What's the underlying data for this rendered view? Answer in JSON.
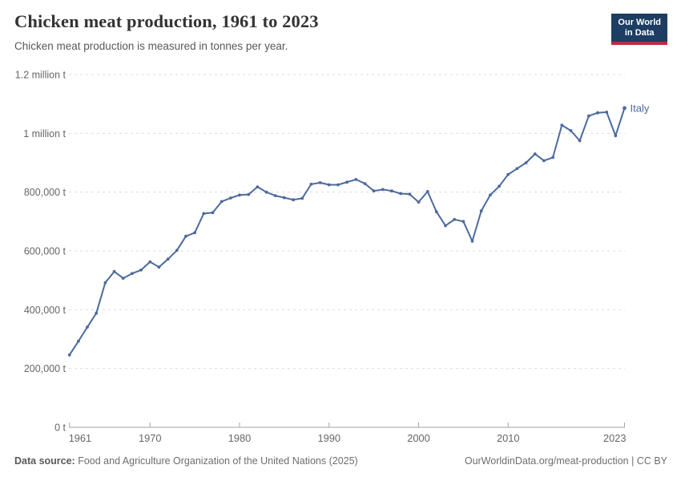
{
  "chart_data": {
    "type": "line",
    "title": "Chicken meat production, 1961 to 2023",
    "subtitle": "Chicken meat production is measured in tonnes per year.",
    "xlabel": "",
    "ylabel": "",
    "xlim": [
      1961,
      2023
    ],
    "ylim": [
      0,
      1200000
    ],
    "grid": "horizontal-dashed",
    "legend_position": "end-of-line-label",
    "x_ticks": [
      1961,
      1970,
      1980,
      1990,
      2000,
      2010,
      2023
    ],
    "y_ticks": [
      {
        "value": 0,
        "label": "0 t"
      },
      {
        "value": 200000,
        "label": "200,000 t"
      },
      {
        "value": 400000,
        "label": "400,000 t"
      },
      {
        "value": 600000,
        "label": "600,000 t"
      },
      {
        "value": 800000,
        "label": "800,000 t"
      },
      {
        "value": 1000000,
        "label": "1 million t"
      },
      {
        "value": 1200000,
        "label": "1.2 million t"
      }
    ],
    "series": [
      {
        "name": "Italy",
        "color": "#4c6a9c",
        "years": [
          1961,
          1962,
          1963,
          1964,
          1965,
          1966,
          1967,
          1968,
          1969,
          1970,
          1971,
          1972,
          1973,
          1974,
          1975,
          1976,
          1977,
          1978,
          1979,
          1980,
          1981,
          1982,
          1983,
          1984,
          1985,
          1986,
          1987,
          1988,
          1989,
          1990,
          1991,
          1992,
          1993,
          1994,
          1995,
          1996,
          1997,
          1998,
          1999,
          2000,
          2001,
          2002,
          2003,
          2004,
          2005,
          2006,
          2007,
          2008,
          2009,
          2010,
          2011,
          2012,
          2013,
          2014,
          2015,
          2016,
          2017,
          2018,
          2019,
          2020,
          2021,
          2022,
          2023
        ],
        "values": [
          246000,
          293000,
          341000,
          388000,
          492000,
          530000,
          507000,
          523000,
          535000,
          563000,
          545000,
          572000,
          602000,
          650000,
          662000,
          727000,
          730000,
          768000,
          780000,
          790000,
          792000,
          818000,
          800000,
          788000,
          781000,
          774000,
          779000,
          827000,
          832000,
          825000,
          825000,
          834000,
          843000,
          829000,
          804000,
          809000,
          804000,
          795000,
          793000,
          766000,
          802000,
          733000,
          686000,
          707000,
          700000,
          633000,
          736000,
          790000,
          820000,
          860000,
          880000,
          900000,
          930000,
          907000,
          918000,
          1028000,
          1009000,
          975000,
          1059000,
          1070000,
          1072000,
          992000,
          1086000
        ]
      }
    ]
  },
  "logo": {
    "line1": "Our World",
    "line2": "in Data"
  },
  "footer": {
    "datasource_label": "Data source:",
    "datasource_text": " Food and Agriculture Organization of the United Nations (2025)",
    "link": "OurWorldinData.org/meat-production | CC BY"
  },
  "colors": {
    "line": "#4c6a9c",
    "grid": "#dcdcdc",
    "axis": "#a3a3a3",
    "tick_label": "#666666",
    "title": "#333333",
    "subtitle": "#595959",
    "logo_bg": "#1d3d63",
    "logo_bar": "#bc2e39"
  }
}
